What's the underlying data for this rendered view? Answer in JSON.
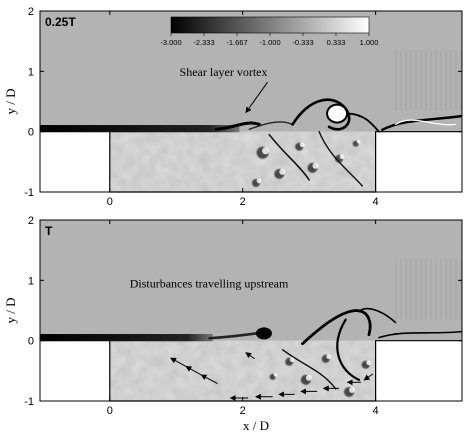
{
  "chart_data": [
    {
      "type": "heatmap",
      "panel_label": "0.25T",
      "xlabel": "",
      "ylabel": "y / D",
      "xlim": [
        -1.05,
        5.3
      ],
      "ylim": [
        -1,
        2
      ],
      "x_ticks": [
        "0",
        "2",
        "4"
      ],
      "y_ticks": [
        "-1",
        "0",
        "1",
        "2"
      ],
      "colorbar": {
        "placement": "top-center",
        "range": [
          -3.0,
          1.0
        ],
        "ticks": [
          "-3.000",
          "-2.333",
          "-1.667",
          "-1.000",
          "-0.333",
          "0.333",
          "1.000"
        ],
        "colors": [
          "#000000",
          "#ffffff"
        ]
      },
      "annotations": [
        {
          "text": "Shear layer vortex",
          "x": 1.05,
          "y": 0.92,
          "arrow_to": [
            2.05,
            0.32
          ]
        }
      ],
      "cavity": {
        "leading_edge_x": 0,
        "trailing_edge_x": 4,
        "depth": -1
      }
    },
    {
      "type": "heatmap",
      "panel_label": "T",
      "xlabel": "x / D",
      "ylabel": "y / D",
      "xlim": [
        -1.05,
        5.3
      ],
      "ylim": [
        -1,
        2
      ],
      "x_ticks": [
        "0",
        "2",
        "4"
      ],
      "y_ticks": [
        "-1",
        "0",
        "1",
        "2"
      ],
      "annotations": [
        {
          "text": "Disturbances travelling upstream",
          "x": 0.3,
          "y": 0.88
        }
      ],
      "upstream_arrows": [
        {
          "from": [
            1.15,
            -0.43
          ],
          "to": [
            0.92,
            -0.29
          ]
        },
        {
          "from": [
            1.38,
            -0.57
          ],
          "to": [
            1.15,
            -0.43
          ]
        },
        {
          "from": [
            1.62,
            -0.71
          ],
          "to": [
            1.38,
            -0.57
          ]
        },
        {
          "from": [
            2.08,
            -0.95
          ],
          "to": [
            1.82,
            -0.95
          ]
        },
        {
          "from": [
            2.45,
            -0.93
          ],
          "to": [
            2.2,
            -0.93
          ]
        },
        {
          "from": [
            2.78,
            -0.89
          ],
          "to": [
            2.55,
            -0.89
          ]
        },
        {
          "from": [
            3.12,
            -0.84
          ],
          "to": [
            2.88,
            -0.84
          ]
        },
        {
          "from": [
            3.45,
            -0.79
          ],
          "to": [
            3.22,
            -0.79
          ]
        },
        {
          "from": [
            3.78,
            -0.69
          ],
          "to": [
            3.58,
            -0.69
          ]
        },
        {
          "from": [
            3.96,
            -0.55
          ],
          "to": [
            3.83,
            -0.65
          ]
        },
        {
          "from": [
            2.18,
            -0.3
          ],
          "to": [
            2.05,
            -0.2
          ]
        }
      ],
      "cavity": {
        "leading_edge_x": 0,
        "trailing_edge_x": 4,
        "depth": -1
      }
    }
  ]
}
